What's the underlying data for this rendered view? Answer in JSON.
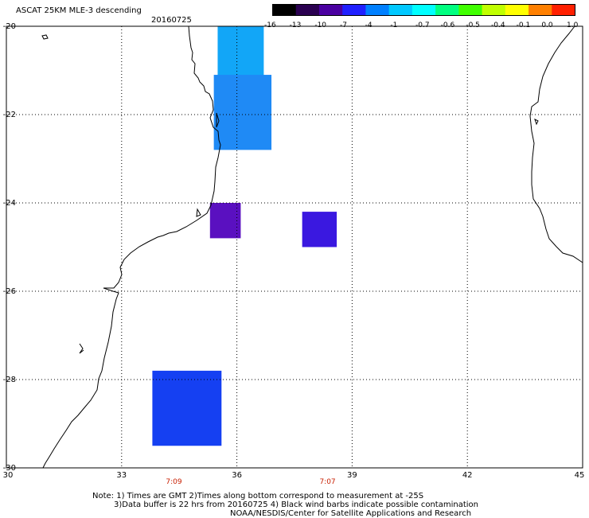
{
  "header": {
    "title": "ASCAT 25KM MLE-3 descending",
    "date": "20160725"
  },
  "colorbar": {
    "labels": [
      "-16",
      "-13",
      "-10",
      "-7",
      "-4",
      "-1",
      "-0.7",
      "-0.6",
      "-0.5",
      "-0.4",
      "-0.1",
      "0.0",
      "1.0"
    ],
    "colors": [
      "#000000",
      "#2a0050",
      "#4a00a0",
      "#2020ff",
      "#0080ff",
      "#00c8ff",
      "#00ffff",
      "#00ff80",
      "#40ff00",
      "#c0ff00",
      "#ffff00",
      "#ff8000",
      "#ff2000"
    ]
  },
  "map": {
    "lon_range": [
      30,
      45
    ],
    "lat_range": [
      -30,
      -20
    ],
    "lon_ticks": [
      "30",
      "33",
      "36",
      "39",
      "42",
      "45"
    ],
    "lat_ticks": [
      "-20",
      "-22",
      "-24",
      "-26",
      "-28",
      "-30"
    ],
    "grid": "dotted",
    "time_labels": [
      {
        "text": "7:09",
        "lon": 34.4
      },
      {
        "text": "7:07",
        "lon": 38.4
      }
    ]
  },
  "swaths": [
    {
      "name": "swath-north",
      "lon": [
        35.5,
        36.7
      ],
      "lat": [
        -22.0,
        -20.0
      ],
      "color": "#12a6f7"
    },
    {
      "name": "swath-north-lower",
      "lon": [
        35.4,
        36.9
      ],
      "lat": [
        -22.8,
        -21.1
      ],
      "color": "#1f8af5"
    },
    {
      "name": "swath-mid-coast",
      "lon": [
        35.3,
        36.1
      ],
      "lat": [
        -24.8,
        -24.0
      ],
      "color": "#5a10c0"
    },
    {
      "name": "swath-mid-offshore",
      "lon": [
        37.7,
        38.6
      ],
      "lat": [
        -25.0,
        -24.2
      ],
      "color": "#3a18e0"
    },
    {
      "name": "swath-south",
      "lon": [
        33.8,
        35.6
      ],
      "lat": [
        -29.5,
        -27.8
      ],
      "color": "#1540f2"
    }
  ],
  "notes": {
    "line1": "Note: 1) Times are GMT 2)Times along bottom correspond to measurement at -25S",
    "line2": "3)Data buffer is 22 hrs from 20160725 4) Black wind barbs indicate possible contamination",
    "line3": "NOAA/NESDIS/Center for Satellite Applications and Research"
  }
}
